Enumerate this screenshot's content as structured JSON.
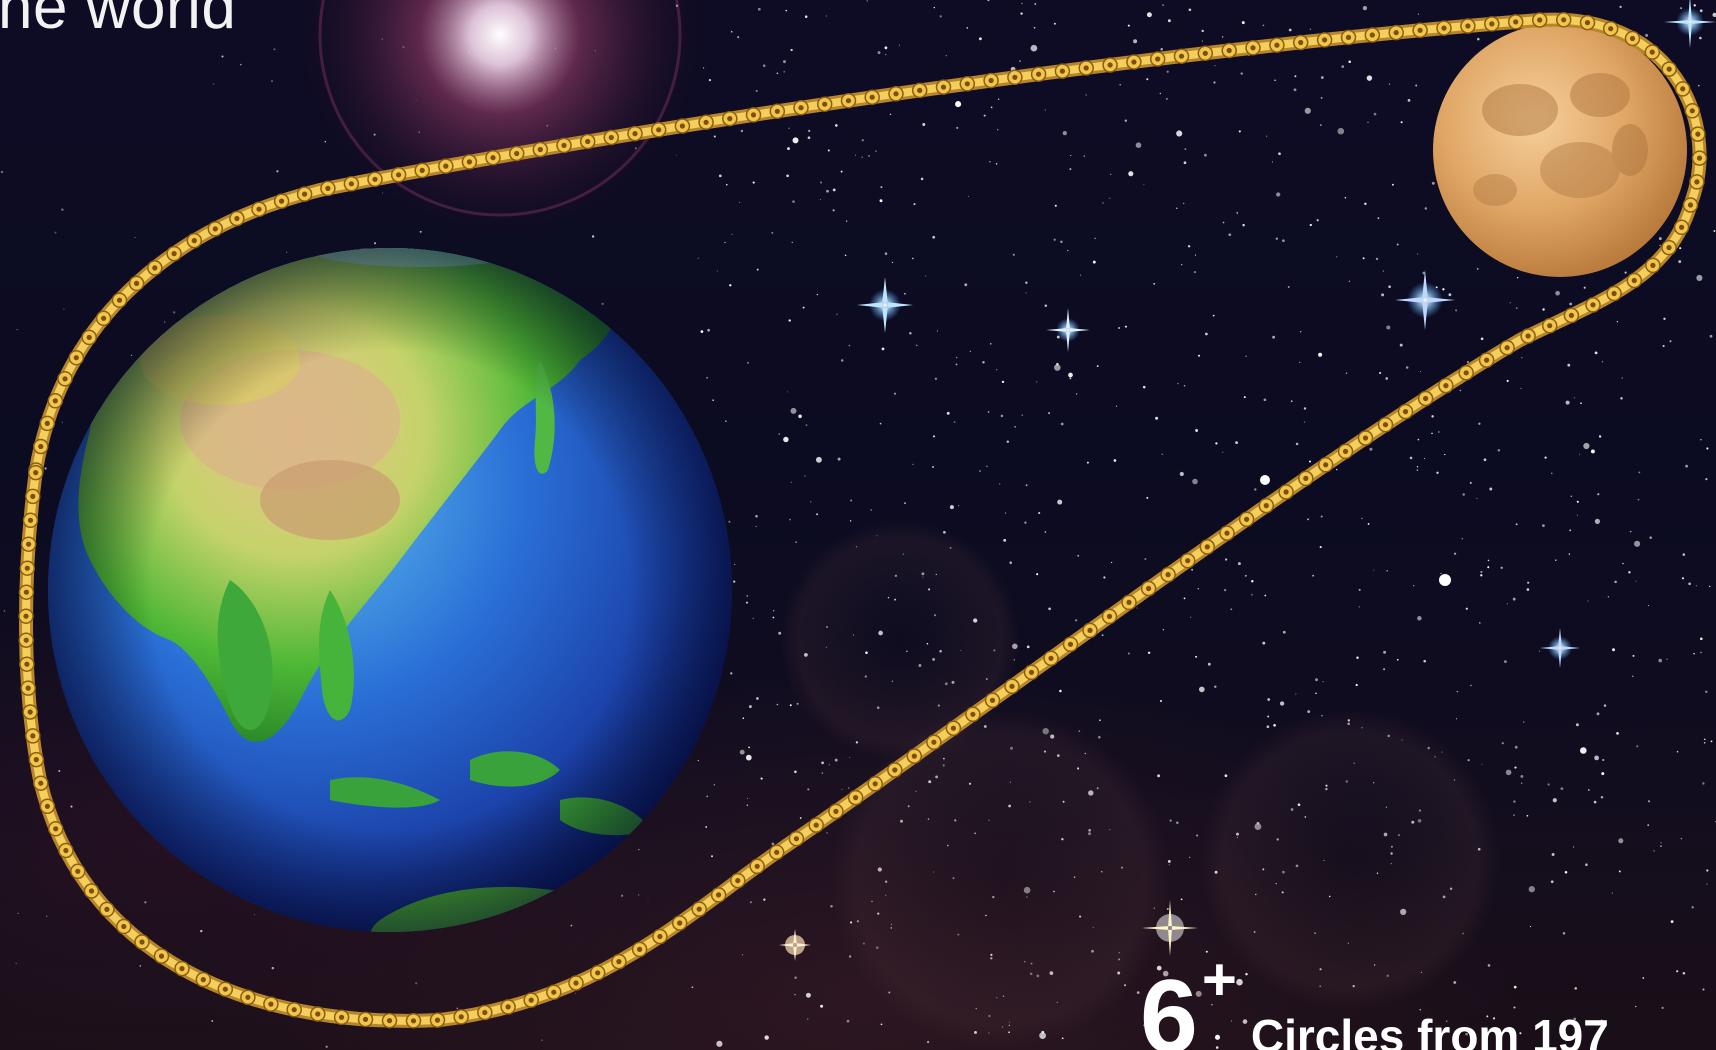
{
  "headline": "he world",
  "stat": {
    "number": "6",
    "superscript": "+",
    "caption": "Circles from 197"
  }
}
